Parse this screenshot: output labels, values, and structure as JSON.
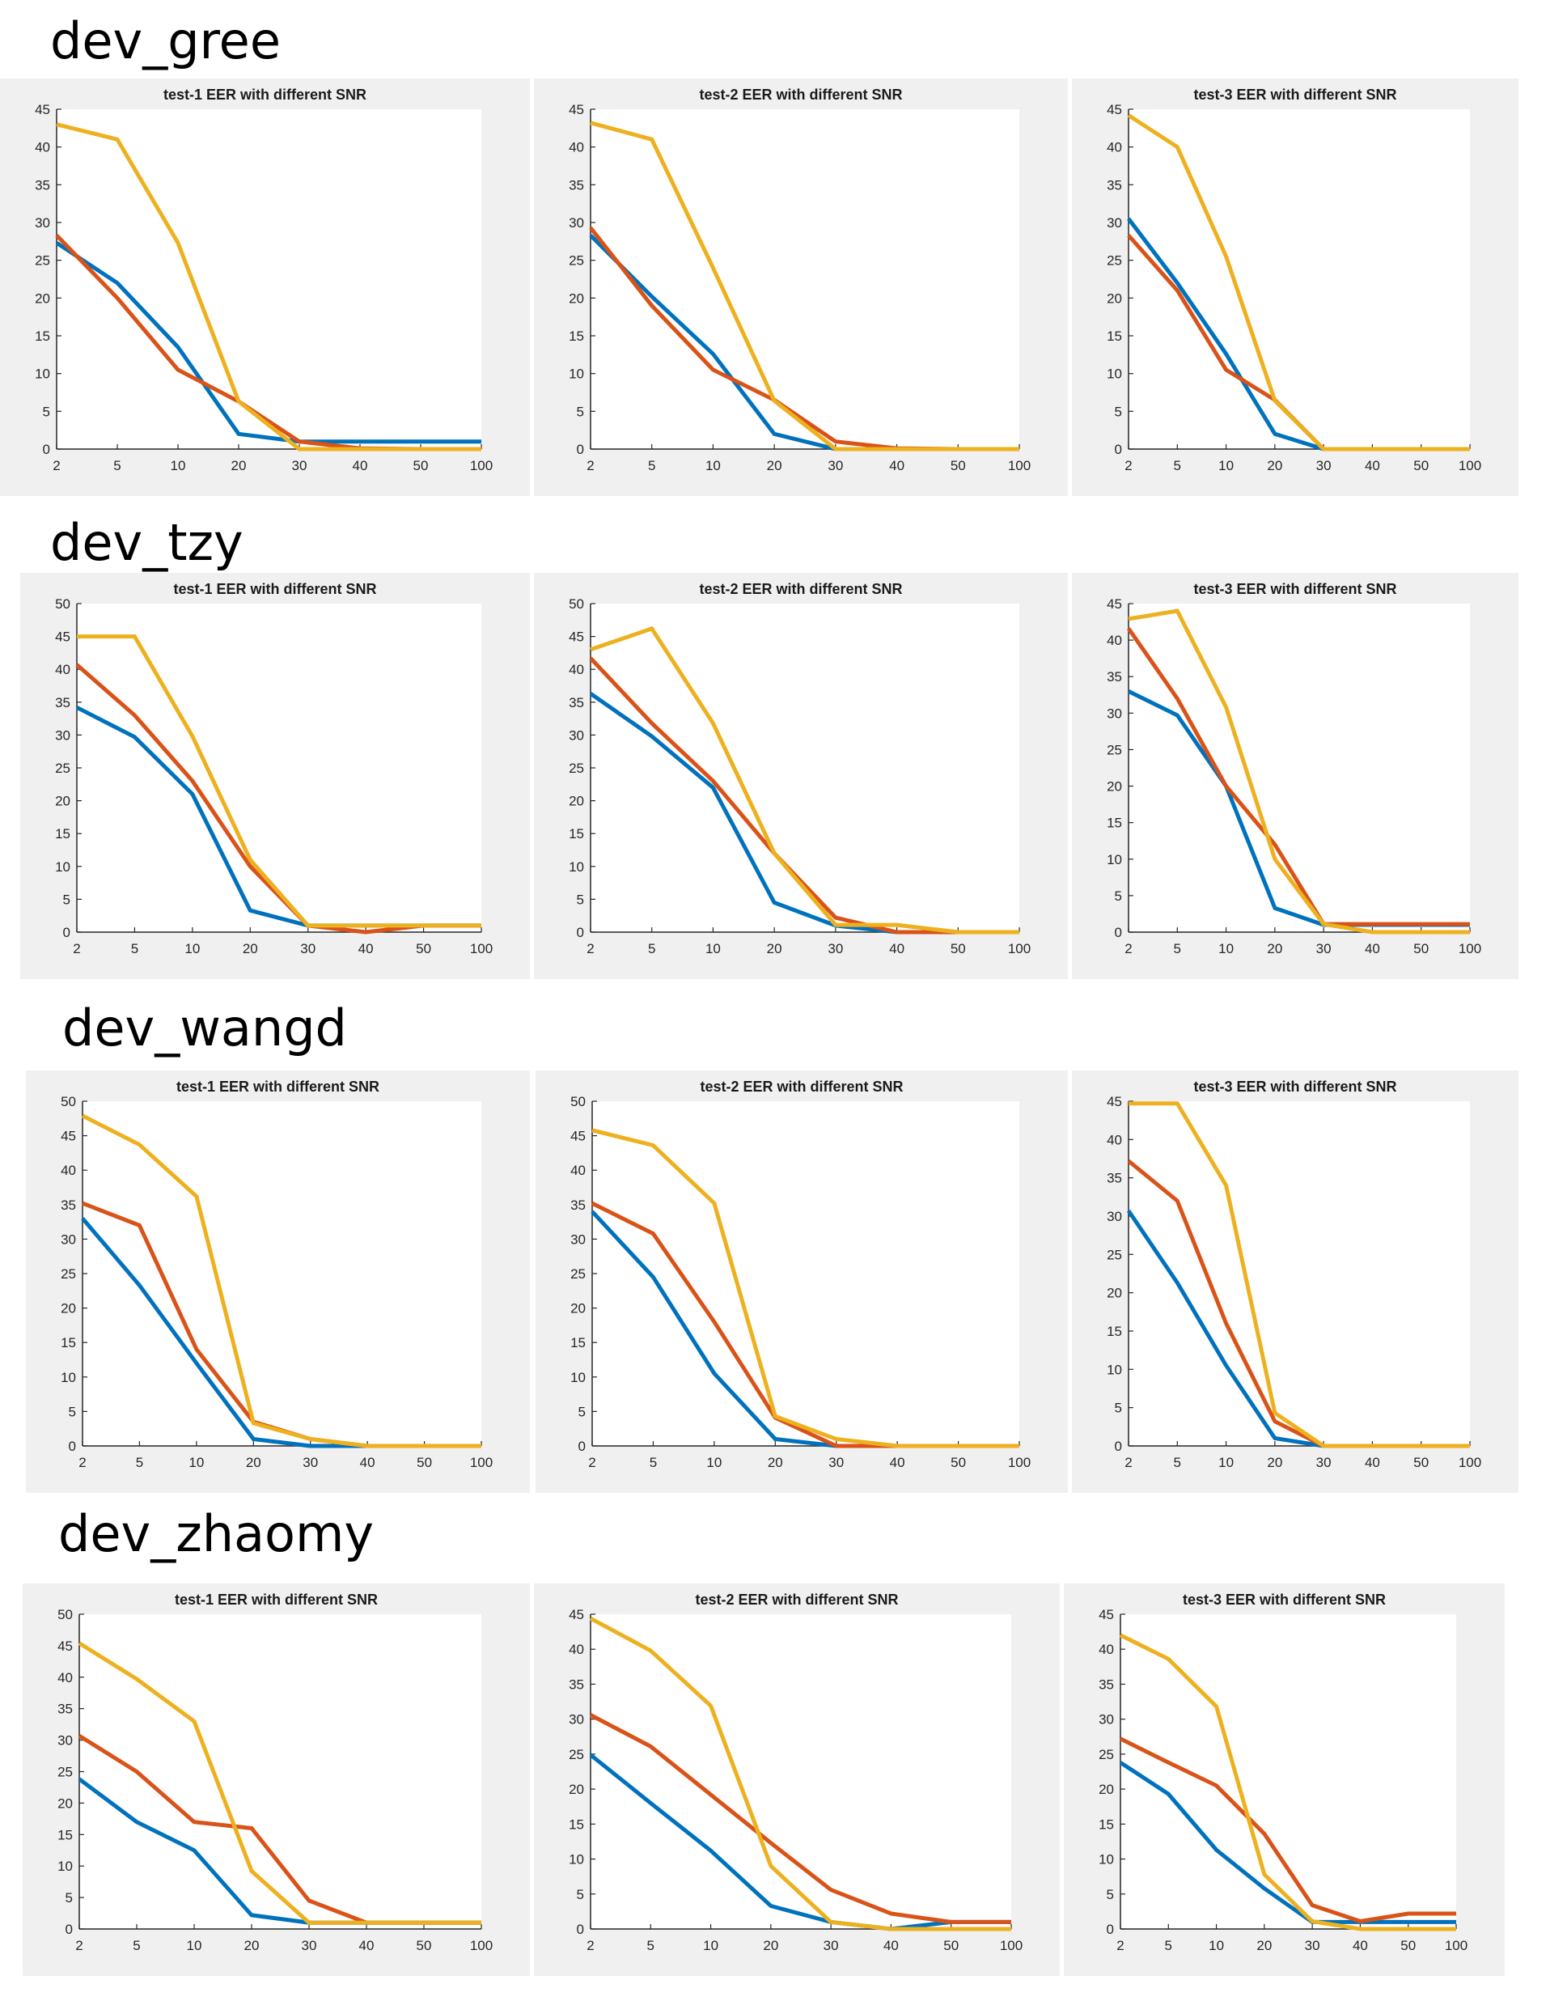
{
  "colors": {
    "blue": "#0072BD",
    "red": "#D95319",
    "yellow": "#EDB120",
    "panel_bg": "#F0F0F0"
  },
  "rows": [
    {
      "label": "dev_gree"
    },
    {
      "label": "dev_tzy"
    },
    {
      "label": "dev_wangd"
    },
    {
      "label": "dev_zhaomy"
    }
  ],
  "chart_data": [
    {
      "type": "line",
      "group": "dev_gree",
      "title": "test-1 EER with different SNR",
      "categories": [
        "2",
        "5",
        "10",
        "20",
        "30",
        "40",
        "50",
        "100"
      ],
      "ylim": [
        0,
        45
      ],
      "yticks": [
        0,
        5,
        10,
        15,
        20,
        25,
        30,
        35,
        40,
        45
      ],
      "series": [
        {
          "name": "blue",
          "color": "#0072BD",
          "values": [
            27.3,
            22,
            13.5,
            2,
            1,
            1,
            1,
            1
          ]
        },
        {
          "name": "red",
          "color": "#D95319",
          "values": [
            28.3,
            20,
            10.5,
            6.3,
            1,
            0.1,
            0,
            0
          ]
        },
        {
          "name": "yellow",
          "color": "#EDB120",
          "values": [
            43,
            41,
            27.3,
            6.3,
            0,
            0,
            0,
            0
          ]
        }
      ]
    },
    {
      "type": "line",
      "group": "dev_gree",
      "title": "test-2 EER with different SNR",
      "categories": [
        "2",
        "5",
        "10",
        "20",
        "30",
        "40",
        "50",
        "100"
      ],
      "ylim": [
        0,
        45
      ],
      "yticks": [
        0,
        5,
        10,
        15,
        20,
        25,
        30,
        35,
        40,
        45
      ],
      "series": [
        {
          "name": "blue",
          "color": "#0072BD",
          "values": [
            28.3,
            20.2,
            12.6,
            2,
            0,
            0,
            0,
            0
          ]
        },
        {
          "name": "red",
          "color": "#D95319",
          "values": [
            29.3,
            19,
            10.5,
            6.5,
            1,
            0.1,
            0,
            0
          ]
        },
        {
          "name": "yellow",
          "color": "#EDB120",
          "values": [
            43.2,
            41,
            24,
            6.4,
            0,
            0,
            0,
            0
          ]
        }
      ]
    },
    {
      "type": "line",
      "group": "dev_gree",
      "title": "test-3 EER with different SNR",
      "categories": [
        "2",
        "5",
        "10",
        "20",
        "30",
        "40",
        "50",
        "100"
      ],
      "ylim": [
        0,
        45
      ],
      "yticks": [
        0,
        5,
        10,
        15,
        20,
        25,
        30,
        35,
        40,
        45
      ],
      "series": [
        {
          "name": "blue",
          "color": "#0072BD",
          "values": [
            30.5,
            22,
            12.6,
            2,
            0,
            0,
            0,
            0
          ]
        },
        {
          "name": "red",
          "color": "#D95319",
          "values": [
            28.3,
            21,
            10.5,
            6.5,
            0,
            0,
            0,
            0
          ]
        },
        {
          "name": "yellow",
          "color": "#EDB120",
          "values": [
            44.2,
            40,
            25.5,
            6.4,
            0,
            0,
            0,
            0
          ]
        }
      ]
    },
    {
      "type": "line",
      "group": "dev_tzy",
      "title": "test-1 EER with different SNR",
      "categories": [
        "2",
        "5",
        "10",
        "20",
        "30",
        "40",
        "50",
        "100"
      ],
      "ylim": [
        0,
        50
      ],
      "yticks": [
        0,
        5,
        10,
        15,
        20,
        25,
        30,
        35,
        40,
        45,
        50
      ],
      "series": [
        {
          "name": "blue",
          "color": "#0072BD",
          "values": [
            34.2,
            29.7,
            21,
            3.3,
            1,
            1,
            1,
            1
          ]
        },
        {
          "name": "red",
          "color": "#D95319",
          "values": [
            40.7,
            33,
            23,
            10,
            1,
            0,
            1,
            1
          ]
        },
        {
          "name": "yellow",
          "color": "#EDB120",
          "values": [
            45,
            45,
            29.8,
            11,
            1,
            1,
            1,
            1
          ]
        }
      ]
    },
    {
      "type": "line",
      "group": "dev_tzy",
      "title": "test-2 EER with different SNR",
      "categories": [
        "2",
        "5",
        "10",
        "20",
        "30",
        "40",
        "50",
        "100"
      ],
      "ylim": [
        0,
        50
      ],
      "yticks": [
        0,
        5,
        10,
        15,
        20,
        25,
        30,
        35,
        40,
        45,
        50
      ],
      "series": [
        {
          "name": "blue",
          "color": "#0072BD",
          "values": [
            36.3,
            29.8,
            22,
            4.5,
            1,
            0,
            0,
            0
          ]
        },
        {
          "name": "red",
          "color": "#D95319",
          "values": [
            41.7,
            31.8,
            23,
            12,
            2.2,
            0,
            0,
            0
          ]
        },
        {
          "name": "yellow",
          "color": "#EDB120",
          "values": [
            43,
            46.2,
            31.8,
            12,
            1.1,
            1.1,
            0,
            0
          ]
        }
      ]
    },
    {
      "type": "line",
      "group": "dev_tzy",
      "title": "test-3 EER with different SNR",
      "categories": [
        "2",
        "5",
        "10",
        "20",
        "30",
        "40",
        "50",
        "100"
      ],
      "ylim": [
        0,
        45
      ],
      "yticks": [
        0,
        5,
        10,
        15,
        20,
        25,
        30,
        35,
        40,
        45
      ],
      "series": [
        {
          "name": "blue",
          "color": "#0072BD",
          "values": [
            33,
            29.7,
            20,
            3.3,
            1,
            1,
            1,
            1
          ]
        },
        {
          "name": "red",
          "color": "#D95319",
          "values": [
            41.6,
            32,
            20,
            12,
            1.1,
            1.1,
            1.1,
            1.1
          ]
        },
        {
          "name": "yellow",
          "color": "#EDB120",
          "values": [
            42.9,
            44,
            30.8,
            10,
            1.1,
            0,
            0,
            0
          ]
        }
      ]
    },
    {
      "type": "line",
      "group": "dev_wangd",
      "title": "test-1 EER with different SNR",
      "categories": [
        "2",
        "5",
        "10",
        "20",
        "30",
        "40",
        "50",
        "100"
      ],
      "ylim": [
        0,
        50
      ],
      "yticks": [
        0,
        5,
        10,
        15,
        20,
        25,
        30,
        35,
        40,
        45,
        50
      ],
      "series": [
        {
          "name": "blue",
          "color": "#0072BD",
          "values": [
            33,
            23.3,
            12,
            1,
            0,
            0,
            0,
            0
          ]
        },
        {
          "name": "red",
          "color": "#D95319",
          "values": [
            35.2,
            32,
            14,
            3.5,
            1,
            0,
            0,
            0
          ]
        },
        {
          "name": "yellow",
          "color": "#EDB120",
          "values": [
            47.9,
            43.7,
            36.2,
            3.3,
            1,
            0,
            0,
            0
          ]
        }
      ]
    },
    {
      "type": "line",
      "group": "dev_wangd",
      "title": "test-2 EER with different SNR",
      "categories": [
        "2",
        "5",
        "10",
        "20",
        "30",
        "40",
        "50",
        "100"
      ],
      "ylim": [
        0,
        50
      ],
      "yticks": [
        0,
        5,
        10,
        15,
        20,
        25,
        30,
        35,
        40,
        45,
        50
      ],
      "series": [
        {
          "name": "blue",
          "color": "#0072BD",
          "values": [
            34,
            24.5,
            10.5,
            1,
            0,
            0,
            0,
            0
          ]
        },
        {
          "name": "red",
          "color": "#D95319",
          "values": [
            35.2,
            30.8,
            18,
            4.1,
            0,
            0,
            0,
            0
          ]
        },
        {
          "name": "yellow",
          "color": "#EDB120",
          "values": [
            45.8,
            43.6,
            35.2,
            4.3,
            1,
            0,
            0,
            0
          ]
        }
      ]
    },
    {
      "type": "line",
      "group": "dev_wangd",
      "title": "test-3 EER with different SNR",
      "categories": [
        "2",
        "5",
        "10",
        "20",
        "30",
        "40",
        "50",
        "100"
      ],
      "ylim": [
        0,
        45
      ],
      "yticks": [
        0,
        5,
        10,
        15,
        20,
        25,
        30,
        35,
        40,
        45
      ],
      "series": [
        {
          "name": "blue",
          "color": "#0072BD",
          "values": [
            30.7,
            21.3,
            10.5,
            1,
            0,
            0,
            0,
            0
          ]
        },
        {
          "name": "red",
          "color": "#D95319",
          "values": [
            37.2,
            32,
            16,
            3.2,
            0,
            0,
            0,
            0
          ]
        },
        {
          "name": "yellow",
          "color": "#EDB120",
          "values": [
            44.7,
            44.7,
            34,
            4.3,
            0,
            0,
            0,
            0
          ]
        }
      ]
    },
    {
      "type": "line",
      "group": "dev_zhaomy",
      "title": "test-1 EER with different SNR",
      "categories": [
        "2",
        "5",
        "10",
        "20",
        "30",
        "40",
        "50",
        "100"
      ],
      "ylim": [
        0,
        50
      ],
      "yticks": [
        0,
        5,
        10,
        15,
        20,
        25,
        30,
        35,
        40,
        45,
        50
      ],
      "series": [
        {
          "name": "blue",
          "color": "#0072BD",
          "values": [
            23.8,
            17,
            12.5,
            2.2,
            1,
            1,
            1,
            1
          ]
        },
        {
          "name": "red",
          "color": "#D95319",
          "values": [
            30.7,
            25,
            17,
            16,
            4.5,
            1,
            1,
            1
          ]
        },
        {
          "name": "yellow",
          "color": "#EDB120",
          "values": [
            45.4,
            39.7,
            33,
            9.2,
            1,
            1,
            1,
            1
          ]
        }
      ]
    },
    {
      "type": "line",
      "group": "dev_zhaomy",
      "title": "test-2 EER with different SNR",
      "categories": [
        "2",
        "5",
        "10",
        "20",
        "30",
        "40",
        "50",
        "100"
      ],
      "ylim": [
        0,
        45
      ],
      "yticks": [
        0,
        5,
        10,
        15,
        20,
        25,
        30,
        35,
        40,
        45
      ],
      "series": [
        {
          "name": "blue",
          "color": "#0072BD",
          "values": [
            24.9,
            18,
            11.2,
            3.3,
            1,
            0,
            1,
            1
          ]
        },
        {
          "name": "red",
          "color": "#D95319",
          "values": [
            30.6,
            26.1,
            19.2,
            12.3,
            5.6,
            2.2,
            1,
            1
          ]
        },
        {
          "name": "yellow",
          "color": "#EDB120",
          "values": [
            44.4,
            39.8,
            31.9,
            9,
            1,
            0,
            0,
            0
          ]
        }
      ]
    },
    {
      "type": "line",
      "group": "dev_zhaomy",
      "title": "test-3 EER with different SNR",
      "categories": [
        "2",
        "5",
        "10",
        "20",
        "30",
        "40",
        "50",
        "100"
      ],
      "ylim": [
        0,
        45
      ],
      "yticks": [
        0,
        5,
        10,
        15,
        20,
        25,
        30,
        35,
        40,
        45
      ],
      "series": [
        {
          "name": "blue",
          "color": "#0072BD",
          "values": [
            23.8,
            19.3,
            11.3,
            5.8,
            1,
            1,
            1,
            1
          ]
        },
        {
          "name": "red",
          "color": "#D95319",
          "values": [
            27.2,
            23.8,
            20.5,
            13.6,
            3.4,
            1.1,
            2.2,
            2.2
          ]
        },
        {
          "name": "yellow",
          "color": "#EDB120",
          "values": [
            42,
            38.6,
            31.8,
            7.8,
            1.1,
            0,
            0,
            0
          ]
        }
      ]
    }
  ]
}
